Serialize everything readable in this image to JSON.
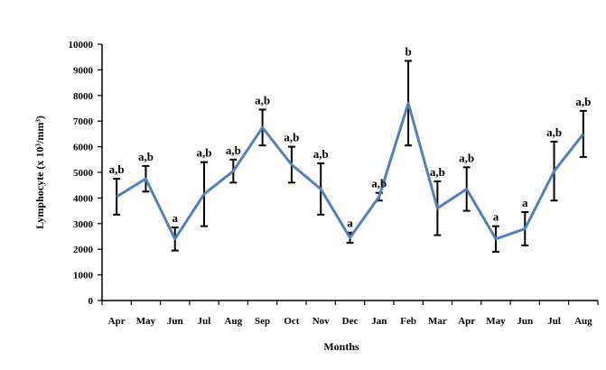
{
  "chart_data": {
    "type": "line",
    "title": "",
    "xlabel": "Months",
    "ylabel": "Lymphocyte (x 10³/mm³)",
    "ylim": [
      0,
      10000
    ],
    "yticks": [
      0,
      1000,
      2000,
      3000,
      4000,
      5000,
      6000,
      7000,
      8000,
      9000,
      10000
    ],
    "ytick_labels": [
      "0",
      "1000",
      "2000",
      "3000",
      "4000",
      "5000",
      "6000",
      "7000",
      "8000",
      "9000",
      "10000"
    ],
    "grid": false,
    "legend": "none",
    "line_color": "#4f81bd",
    "errorbar_color": "#000000",
    "categories": [
      "Apr",
      "May",
      "Jun",
      "Jul",
      "Aug",
      "Sep",
      "Oct",
      "Nov",
      "Dec",
      "Jan",
      "Feb",
      "Mar",
      "Apr",
      "May",
      "Jun",
      "Jul",
      "Aug"
    ],
    "values": [
      4050,
      4750,
      2400,
      4150,
      5050,
      6750,
      5300,
      4350,
      2450,
      4050,
      7700,
      3600,
      4350,
      2400,
      2800,
      5050,
      6500
    ],
    "errors": [
      700,
      500,
      450,
      1250,
      450,
      700,
      700,
      1000,
      200,
      150,
      1650,
      1050,
      850,
      500,
      650,
      1150,
      900
    ],
    "significance": [
      "a,b",
      "a,b",
      "a",
      "a,b",
      "a,b",
      "a,b",
      "a,b",
      "a,b",
      "a",
      "a,b",
      "b",
      "a,b",
      "a,b",
      "a",
      "a",
      "a,b",
      "a,b"
    ]
  }
}
